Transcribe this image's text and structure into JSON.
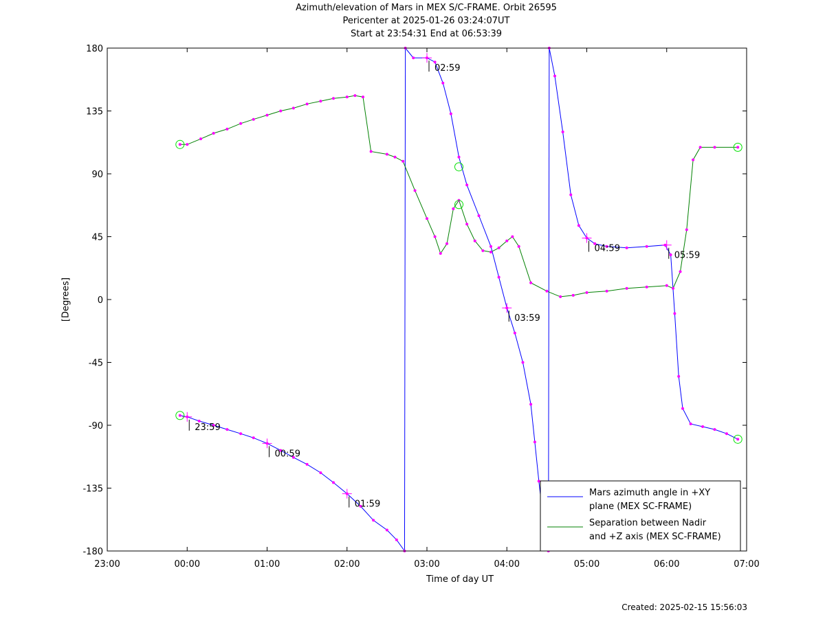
{
  "header": {
    "title": "Azimuth/elevation of Mars in MEX S/C-FRAME.  Orbit 26595",
    "pericenter": "Pericenter at 2025-01-26 03:24:07UT",
    "span": "Start at 23:54:31 End at 06:53:39"
  },
  "footer": {
    "created": "Created: 2025-02-15 15:56:03"
  },
  "chart_data": {
    "type": "line",
    "title": "Azimuth/elevation of Mars in MEX S/C-FRAME.  Orbit 26595",
    "xlabel": "Time of day UT",
    "ylabel": "[Degrees]",
    "xlim": [
      -1,
      7
    ],
    "ylim": [
      -180,
      180
    ],
    "x_ticks": [
      "23:00",
      "00:00",
      "01:00",
      "02:00",
      "03:00",
      "04:00",
      "05:00",
      "06:00",
      "07:00"
    ],
    "y_ticks": [
      180,
      135,
      90,
      45,
      0,
      -45,
      -90,
      -135,
      -180
    ],
    "grid": false,
    "legend_position": "bottom-right",
    "series": [
      {
        "name": "Mars azimuth angle in +XY plane (MEX SC-FRAME)",
        "legend_lines": [
          "Mars azimuth angle in +XY",
          "plane (MEX SC-FRAME)"
        ],
        "color": "#0000ff",
        "segments": [
          [
            [
              -0.09,
              -83
            ],
            [
              0.0,
              -84
            ],
            [
              0.15,
              -87
            ],
            [
              0.33,
              -90
            ],
            [
              0.5,
              -93
            ],
            [
              0.67,
              -96
            ],
            [
              0.83,
              -99
            ],
            [
              1.0,
              -103
            ],
            [
              1.17,
              -108
            ],
            [
              1.33,
              -113
            ],
            [
              1.5,
              -118
            ],
            [
              1.67,
              -124
            ],
            [
              1.83,
              -131
            ],
            [
              2.0,
              -139
            ],
            [
              2.17,
              -148
            ],
            [
              2.33,
              -158
            ],
            [
              2.5,
              -165
            ],
            [
              2.62,
              -172
            ],
            [
              2.72,
              -180
            ]
          ],
          [
            [
              2.73,
              180
            ],
            [
              2.83,
              173
            ],
            [
              3.0,
              173
            ],
            [
              3.1,
              170
            ],
            [
              3.2,
              155
            ],
            [
              3.3,
              133
            ],
            [
              3.4,
              102
            ],
            [
              3.5,
              82
            ],
            [
              3.65,
              60
            ],
            [
              3.8,
              38
            ],
            [
              3.9,
              16
            ],
            [
              4.0,
              -6
            ],
            [
              4.1,
              -24
            ],
            [
              4.2,
              -45
            ],
            [
              4.3,
              -75
            ],
            [
              4.35,
              -102
            ],
            [
              4.4,
              -130
            ],
            [
              4.45,
              -155
            ],
            [
              4.5,
              -170
            ],
            [
              4.52,
              -180
            ]
          ],
          [
            [
              4.53,
              180
            ],
            [
              4.6,
              160
            ],
            [
              4.7,
              120
            ],
            [
              4.8,
              75
            ],
            [
              4.9,
              53
            ],
            [
              5.0,
              44
            ],
            [
              5.1,
              40
            ],
            [
              5.25,
              38
            ],
            [
              5.5,
              37
            ],
            [
              5.75,
              38
            ],
            [
              5.98,
              39
            ],
            [
              6.05,
              32
            ],
            [
              6.1,
              -10
            ],
            [
              6.15,
              -55
            ],
            [
              6.2,
              -78
            ],
            [
              6.3,
              -89
            ],
            [
              6.45,
              -91
            ],
            [
              6.6,
              -93
            ],
            [
              6.75,
              -96
            ],
            [
              6.89,
              -100
            ]
          ]
        ]
      },
      {
        "name": "Separation between Nadir and +Z axis (MEX SC-FRAME)",
        "legend_lines": [
          "Separation between Nadir",
          "and +Z axis (MEX SC-FRAME)"
        ],
        "color": "#008000",
        "segments": [
          [
            [
              -0.09,
              111
            ],
            [
              0.0,
              111
            ],
            [
              0.17,
              115
            ],
            [
              0.33,
              119
            ],
            [
              0.5,
              122
            ],
            [
              0.67,
              126
            ],
            [
              0.83,
              129
            ],
            [
              1.0,
              132
            ],
            [
              1.17,
              135
            ],
            [
              1.33,
              137
            ],
            [
              1.5,
              140
            ],
            [
              1.67,
              142
            ],
            [
              1.83,
              144
            ],
            [
              2.0,
              145
            ],
            [
              2.1,
              146
            ],
            [
              2.2,
              145
            ],
            [
              2.3,
              106
            ],
            [
              2.5,
              104
            ],
            [
              2.6,
              102
            ],
            [
              2.7,
              99
            ],
            [
              2.85,
              78
            ],
            [
              3.0,
              58
            ],
            [
              3.1,
              45
            ],
            [
              3.17,
              33
            ],
            [
              3.25,
              40
            ],
            [
              3.33,
              65
            ],
            [
              3.4,
              71
            ],
            [
              3.5,
              54
            ],
            [
              3.6,
              42
            ],
            [
              3.7,
              35
            ],
            [
              3.8,
              34
            ],
            [
              3.9,
              37
            ],
            [
              4.0,
              42
            ],
            [
              4.07,
              45
            ],
            [
              4.15,
              38
            ],
            [
              4.3,
              12
            ],
            [
              4.5,
              6
            ],
            [
              4.67,
              2
            ],
            [
              4.83,
              3
            ],
            [
              5.0,
              5
            ],
            [
              5.25,
              6
            ],
            [
              5.5,
              8
            ],
            [
              5.75,
              9
            ],
            [
              6.0,
              10
            ],
            [
              6.08,
              8
            ],
            [
              6.17,
              20
            ],
            [
              6.25,
              50
            ],
            [
              6.33,
              100
            ],
            [
              6.42,
              109
            ],
            [
              6.6,
              109
            ],
            [
              6.89,
              109
            ]
          ]
        ]
      }
    ],
    "time_ticks": [
      {
        "x": 0.0,
        "y": -84,
        "label": "23:59"
      },
      {
        "x": 1.0,
        "y": -103,
        "label": "00:59"
      },
      {
        "x": 2.0,
        "y": -139,
        "label": "01:59"
      },
      {
        "x": 3.0,
        "y": 173,
        "label": "02:59"
      },
      {
        "x": 4.0,
        "y": -6,
        "label": "03:59"
      },
      {
        "x": 5.0,
        "y": 44,
        "label": "04:59"
      },
      {
        "x": 6.0,
        "y": 39,
        "label": "05:59"
      }
    ],
    "circle_markers": [
      {
        "x": -0.09,
        "y": -83
      },
      {
        "x": -0.09,
        "y": 111
      },
      {
        "x": 3.4,
        "y": 95
      },
      {
        "x": 3.4,
        "y": 68
      },
      {
        "x": 6.89,
        "y": -100
      },
      {
        "x": 6.89,
        "y": 109
      }
    ]
  }
}
